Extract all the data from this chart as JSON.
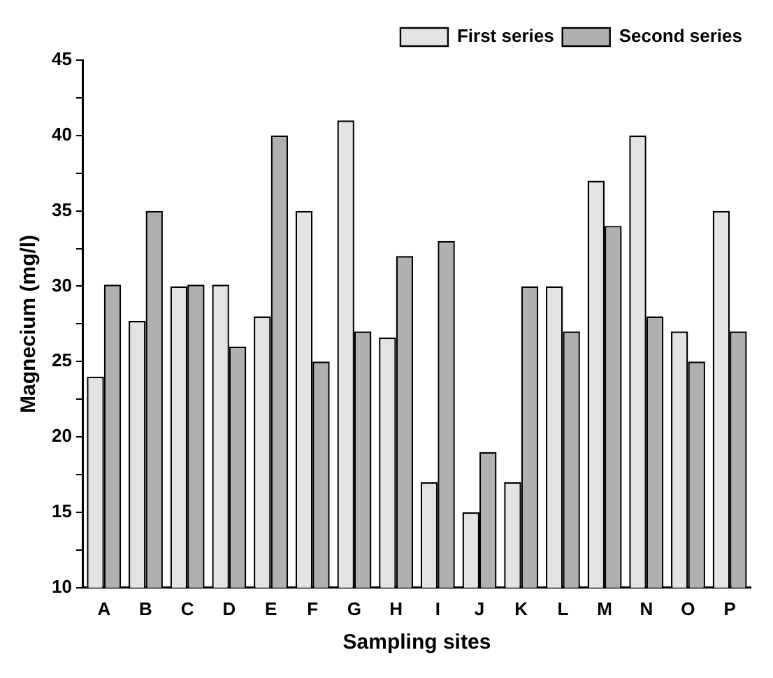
{
  "chart_data": {
    "type": "bar",
    "xlabel": "Sampling sites",
    "ylabel": "Magnecium (mg/l)",
    "categories": [
      "A",
      "B",
      "C",
      "D",
      "E",
      "F",
      "G",
      "H",
      "I",
      "J",
      "K",
      "L",
      "M",
      "N",
      "O",
      "P"
    ],
    "series": [
      {
        "name": "First series",
        "color": "#e3e3e3",
        "values": [
          24,
          27.7,
          30,
          30.1,
          28,
          35,
          41,
          26.6,
          17,
          15,
          17,
          30,
          37,
          40,
          27,
          35
        ]
      },
      {
        "name": "Second series",
        "color": "#b0b0b0",
        "values": [
          30.1,
          35,
          30.1,
          26,
          40,
          25,
          27,
          32,
          33,
          19,
          30,
          27,
          34,
          28,
          25,
          27
        ]
      }
    ],
    "ylim": [
      10,
      45
    ],
    "yticks": [
      10,
      {
        "value": 12.5,
        "label": null
      },
      15,
      {
        "value": 17.5,
        "label": null
      },
      20,
      {
        "value": 22.5,
        "label": null
      },
      25,
      {
        "value": 27.5,
        "label": null
      },
      30,
      {
        "value": 32.5,
        "label": null
      },
      35,
      {
        "value": 37.5,
        "label": null
      },
      40,
      {
        "value": 42.5,
        "label": null
      },
      45
    ],
    "grid": false,
    "legend": "top right"
  }
}
